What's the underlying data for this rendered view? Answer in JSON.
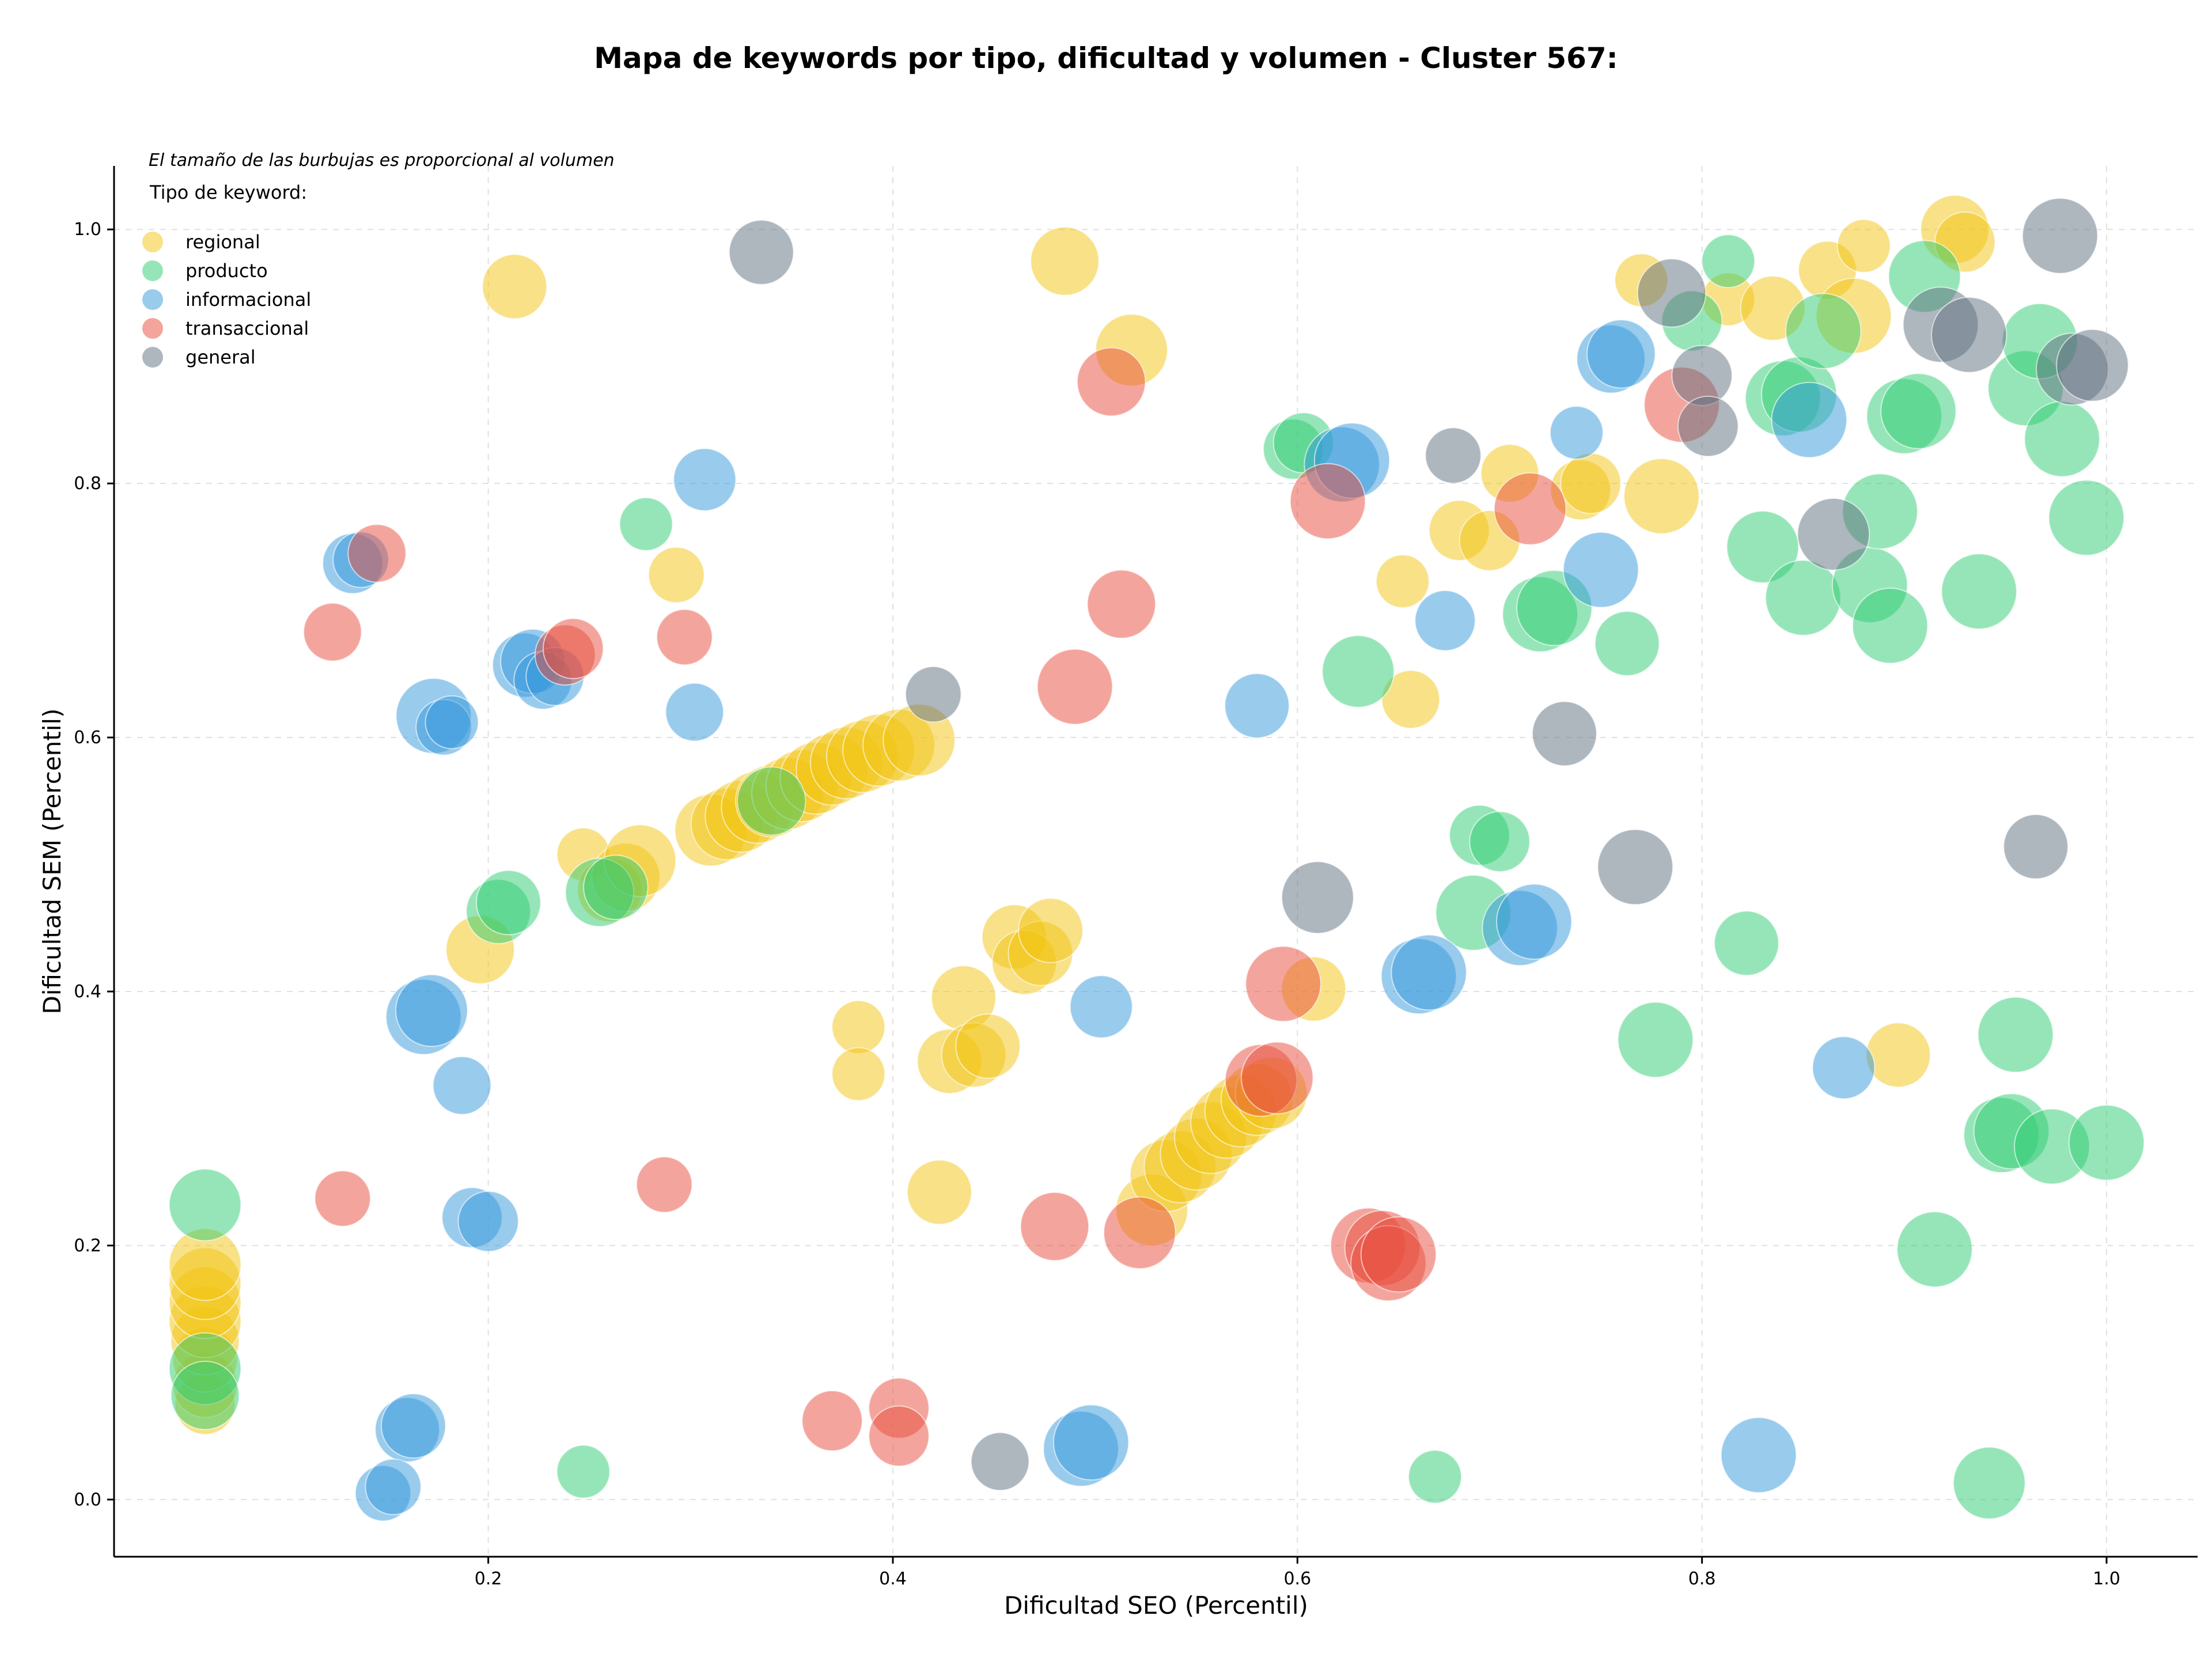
{
  "chart_data": {
    "type": "scatter",
    "title": "Mapa de keywords por tipo, dificultad y volumen - Cluster 567:",
    "xlabel": "Dificultad SEO (Percentil)",
    "ylabel": "Dificultad SEM (Percentil)",
    "note": "El tamaño de las burbujas es proporcional al volumen",
    "legend_title": "Tipo de keyword:",
    "legend_position": "top-left",
    "grid": true,
    "xlim": [
      0.015,
      1.045
    ],
    "ylim": [
      -0.045,
      1.05
    ],
    "xticks": [
      0.2,
      0.4,
      0.6,
      0.8,
      1.0
    ],
    "xtick_labels": [
      "0.2",
      "0.4",
      "0.6",
      "0.8",
      "1.0"
    ],
    "yticks": [
      0.0,
      0.2,
      0.4,
      0.6,
      0.8,
      1.0
    ],
    "ytick_labels": [
      "0.0",
      "0.2",
      "0.4",
      "0.6",
      "0.8",
      "1.0"
    ],
    "series": [
      {
        "name": "regional",
        "color": "#f1c40f",
        "points": [
          [
            0.06,
            0.075,
            0.5
          ],
          [
            0.06,
            0.09,
            0.6
          ],
          [
            0.06,
            0.11,
            0.6
          ],
          [
            0.06,
            0.125,
            0.7
          ],
          [
            0.06,
            0.14,
            0.8
          ],
          [
            0.06,
            0.155,
            0.8
          ],
          [
            0.06,
            0.17,
            0.8
          ],
          [
            0.06,
            0.185,
            0.8
          ],
          [
            0.213,
            0.955,
            0.6
          ],
          [
            0.196,
            0.433,
            0.7
          ],
          [
            0.247,
            0.508,
            0.35
          ],
          [
            0.293,
            0.728,
            0.4
          ],
          [
            0.383,
            0.372,
            0.35
          ],
          [
            0.383,
            0.335,
            0.35
          ],
          [
            0.26,
            0.48,
            0.6
          ],
          [
            0.268,
            0.49,
            0.7
          ],
          [
            0.275,
            0.503,
            0.8
          ],
          [
            0.31,
            0.527,
            0.8
          ],
          [
            0.318,
            0.532,
            0.8
          ],
          [
            0.325,
            0.538,
            0.8
          ],
          [
            0.333,
            0.545,
            0.8
          ],
          [
            0.34,
            0.55,
            0.8
          ],
          [
            0.348,
            0.556,
            0.8
          ],
          [
            0.355,
            0.562,
            0.8
          ],
          [
            0.362,
            0.568,
            0.8
          ],
          [
            0.37,
            0.575,
            0.8
          ],
          [
            0.377,
            0.58,
            0.8
          ],
          [
            0.385,
            0.585,
            0.8
          ],
          [
            0.393,
            0.59,
            0.8
          ],
          [
            0.403,
            0.594,
            0.8
          ],
          [
            0.413,
            0.598,
            0.8
          ],
          [
            0.485,
            0.975,
            0.7
          ],
          [
            0.518,
            0.905,
            0.8
          ],
          [
            0.46,
            0.443,
            0.6
          ],
          [
            0.465,
            0.423,
            0.6
          ],
          [
            0.473,
            0.43,
            0.6
          ],
          [
            0.478,
            0.448,
            0.6
          ],
          [
            0.435,
            0.395,
            0.6
          ],
          [
            0.428,
            0.345,
            0.6
          ],
          [
            0.44,
            0.35,
            0.6
          ],
          [
            0.447,
            0.357,
            0.6
          ],
          [
            0.423,
            0.242,
            0.6
          ],
          [
            0.528,
            0.228,
            0.8
          ],
          [
            0.535,
            0.255,
            0.8
          ],
          [
            0.542,
            0.262,
            0.8
          ],
          [
            0.55,
            0.272,
            0.8
          ],
          [
            0.557,
            0.285,
            0.8
          ],
          [
            0.565,
            0.297,
            0.8
          ],
          [
            0.572,
            0.306,
            0.8
          ],
          [
            0.58,
            0.315,
            0.8
          ],
          [
            0.587,
            0.32,
            0.8
          ],
          [
            0.608,
            0.402,
            0.6
          ],
          [
            0.652,
            0.723,
            0.35
          ],
          [
            0.656,
            0.63,
            0.45
          ],
          [
            0.68,
            0.763,
            0.5
          ],
          [
            0.695,
            0.755,
            0.5
          ],
          [
            0.705,
            0.808,
            0.45
          ],
          [
            0.74,
            0.795,
            0.5
          ],
          [
            0.745,
            0.8,
            0.5
          ],
          [
            0.78,
            0.79,
            0.9
          ],
          [
            0.77,
            0.96,
            0.35
          ],
          [
            0.813,
            0.945,
            0.35
          ],
          [
            0.835,
            0.938,
            0.6
          ],
          [
            0.862,
            0.968,
            0.45
          ],
          [
            0.875,
            0.932,
            0.9
          ],
          [
            0.88,
            0.987,
            0.35
          ],
          [
            0.925,
            1.0,
            0.7
          ],
          [
            0.93,
            0.99,
            0.5
          ],
          [
            0.897,
            0.35,
            0.6
          ]
        ]
      },
      {
        "name": "producto",
        "color": "#2ecc71",
        "points": [
          [
            0.06,
            0.232,
            0.8
          ],
          [
            0.06,
            0.103,
            0.8
          ],
          [
            0.06,
            0.082,
            0.7
          ],
          [
            0.278,
            0.768,
            0.35
          ],
          [
            0.205,
            0.463,
            0.6
          ],
          [
            0.21,
            0.47,
            0.6
          ],
          [
            0.247,
            0.022,
            0.35
          ],
          [
            0.255,
            0.478,
            0.7
          ],
          [
            0.263,
            0.482,
            0.6
          ],
          [
            0.34,
            0.55,
            0.7
          ],
          [
            0.598,
            0.827,
            0.5
          ],
          [
            0.603,
            0.832,
            0.5
          ],
          [
            0.63,
            0.652,
            0.8
          ],
          [
            0.668,
            0.018,
            0.35
          ],
          [
            0.69,
            0.523,
            0.5
          ],
          [
            0.7,
            0.518,
            0.5
          ],
          [
            0.687,
            0.462,
            0.9
          ],
          [
            0.72,
            0.697,
            0.9
          ],
          [
            0.727,
            0.702,
            0.9
          ],
          [
            0.763,
            0.674,
            0.6
          ],
          [
            0.777,
            0.362,
            0.9
          ],
          [
            0.795,
            0.928,
            0.5
          ],
          [
            0.813,
            0.975,
            0.35
          ],
          [
            0.822,
            0.438,
            0.6
          ],
          [
            0.83,
            0.75,
            0.8
          ],
          [
            0.84,
            0.867,
            0.9
          ],
          [
            0.848,
            0.87,
            0.9
          ],
          [
            0.85,
            0.71,
            0.9
          ],
          [
            0.86,
            0.92,
            0.9
          ],
          [
            0.883,
            0.72,
            0.9
          ],
          [
            0.888,
            0.778,
            0.9
          ],
          [
            0.893,
            0.688,
            0.9
          ],
          [
            0.9,
            0.853,
            0.9
          ],
          [
            0.907,
            0.857,
            0.9
          ],
          [
            0.91,
            0.963,
            0.8
          ],
          [
            0.915,
            0.197,
            0.9
          ],
          [
            0.937,
            0.715,
            0.9
          ],
          [
            0.942,
            0.013,
            0.8
          ],
          [
            0.948,
            0.287,
            0.9
          ],
          [
            0.953,
            0.29,
            0.9
          ],
          [
            0.955,
            0.366,
            0.9
          ],
          [
            0.96,
            0.875,
            0.9
          ],
          [
            0.967,
            0.912,
            0.9
          ],
          [
            0.973,
            0.278,
            0.9
          ],
          [
            0.978,
            0.835,
            0.9
          ],
          [
            0.99,
            0.773,
            0.9
          ],
          [
            1.0,
            0.281,
            0.9
          ]
        ]
      },
      {
        "name": "informacional",
        "color": "#3498db",
        "points": [
          [
            0.133,
            0.737,
            0.5
          ],
          [
            0.137,
            0.74,
            0.4
          ],
          [
            0.16,
            0.055,
            0.6
          ],
          [
            0.163,
            0.058,
            0.6
          ],
          [
            0.148,
            0.005,
            0.4
          ],
          [
            0.153,
            0.01,
            0.4
          ],
          [
            0.168,
            0.38,
            0.9
          ],
          [
            0.172,
            0.385,
            0.8
          ],
          [
            0.173,
            0.617,
            0.9
          ],
          [
            0.178,
            0.608,
            0.4
          ],
          [
            0.182,
            0.612,
            0.35
          ],
          [
            0.187,
            0.326,
            0.45
          ],
          [
            0.192,
            0.222,
            0.5
          ],
          [
            0.2,
            0.219,
            0.5
          ],
          [
            0.218,
            0.657,
            0.6
          ],
          [
            0.222,
            0.66,
            0.6
          ],
          [
            0.227,
            0.645,
            0.45
          ],
          [
            0.233,
            0.648,
            0.45
          ],
          [
            0.307,
            0.803,
            0.55
          ],
          [
            0.302,
            0.62,
            0.45
          ],
          [
            0.493,
            0.04,
            0.9
          ],
          [
            0.498,
            0.045,
            0.9
          ],
          [
            0.503,
            0.388,
            0.55
          ],
          [
            0.58,
            0.625,
            0.6
          ],
          [
            0.622,
            0.815,
            0.9
          ],
          [
            0.627,
            0.818,
            0.9
          ],
          [
            0.66,
            0.412,
            0.9
          ],
          [
            0.665,
            0.415,
            0.9
          ],
          [
            0.673,
            0.692,
            0.5
          ],
          [
            0.71,
            0.45,
            0.9
          ],
          [
            0.717,
            0.455,
            0.9
          ],
          [
            0.738,
            0.84,
            0.35
          ],
          [
            0.75,
            0.732,
            0.9
          ],
          [
            0.755,
            0.898,
            0.7
          ],
          [
            0.76,
            0.902,
            0.7
          ],
          [
            0.828,
            0.035,
            0.9
          ],
          [
            0.853,
            0.85,
            0.9
          ],
          [
            0.87,
            0.34,
            0.55
          ]
        ]
      },
      {
        "name": "transaccional",
        "color": "#e74c3c",
        "points": [
          [
            0.123,
            0.683,
            0.45
          ],
          [
            0.145,
            0.745,
            0.45
          ],
          [
            0.128,
            0.237,
            0.4
          ],
          [
            0.238,
            0.665,
            0.5
          ],
          [
            0.242,
            0.67,
            0.5
          ],
          [
            0.297,
            0.679,
            0.4
          ],
          [
            0.287,
            0.248,
            0.4
          ],
          [
            0.37,
            0.062,
            0.5
          ],
          [
            0.403,
            0.072,
            0.5
          ],
          [
            0.403,
            0.05,
            0.5
          ],
          [
            0.48,
            0.215,
            0.7
          ],
          [
            0.49,
            0.64,
            0.9
          ],
          [
            0.508,
            0.88,
            0.7
          ],
          [
            0.513,
            0.705,
            0.7
          ],
          [
            0.522,
            0.21,
            0.8
          ],
          [
            0.582,
            0.33,
            0.8
          ],
          [
            0.59,
            0.332,
            0.8
          ],
          [
            0.593,
            0.406,
            0.9
          ],
          [
            0.615,
            0.786,
            0.9
          ],
          [
            0.635,
            0.2,
            0.9
          ],
          [
            0.642,
            0.198,
            0.9
          ],
          [
            0.645,
            0.186,
            0.9
          ],
          [
            0.65,
            0.193,
            0.9
          ],
          [
            0.715,
            0.78,
            0.8
          ],
          [
            0.79,
            0.862,
            0.9
          ]
        ]
      },
      {
        "name": "general",
        "color": "#5d6d7e",
        "points": [
          [
            0.335,
            0.982,
            0.6
          ],
          [
            0.42,
            0.634,
            0.4
          ],
          [
            0.453,
            0.03,
            0.45
          ],
          [
            0.61,
            0.474,
            0.8
          ],
          [
            0.677,
            0.822,
            0.4
          ],
          [
            0.732,
            0.603,
            0.6
          ],
          [
            0.767,
            0.498,
            0.9
          ],
          [
            0.785,
            0.95,
            0.7
          ],
          [
            0.8,
            0.885,
            0.5
          ],
          [
            0.803,
            0.845,
            0.5
          ],
          [
            0.865,
            0.76,
            0.8
          ],
          [
            0.918,
            0.925,
            0.9
          ],
          [
            0.932,
            0.917,
            0.9
          ],
          [
            0.965,
            0.514,
            0.6
          ],
          [
            0.977,
            0.995,
            0.9
          ],
          [
            0.983,
            0.89,
            0.8
          ],
          [
            0.993,
            0.893,
            0.8
          ]
        ]
      }
    ]
  }
}
